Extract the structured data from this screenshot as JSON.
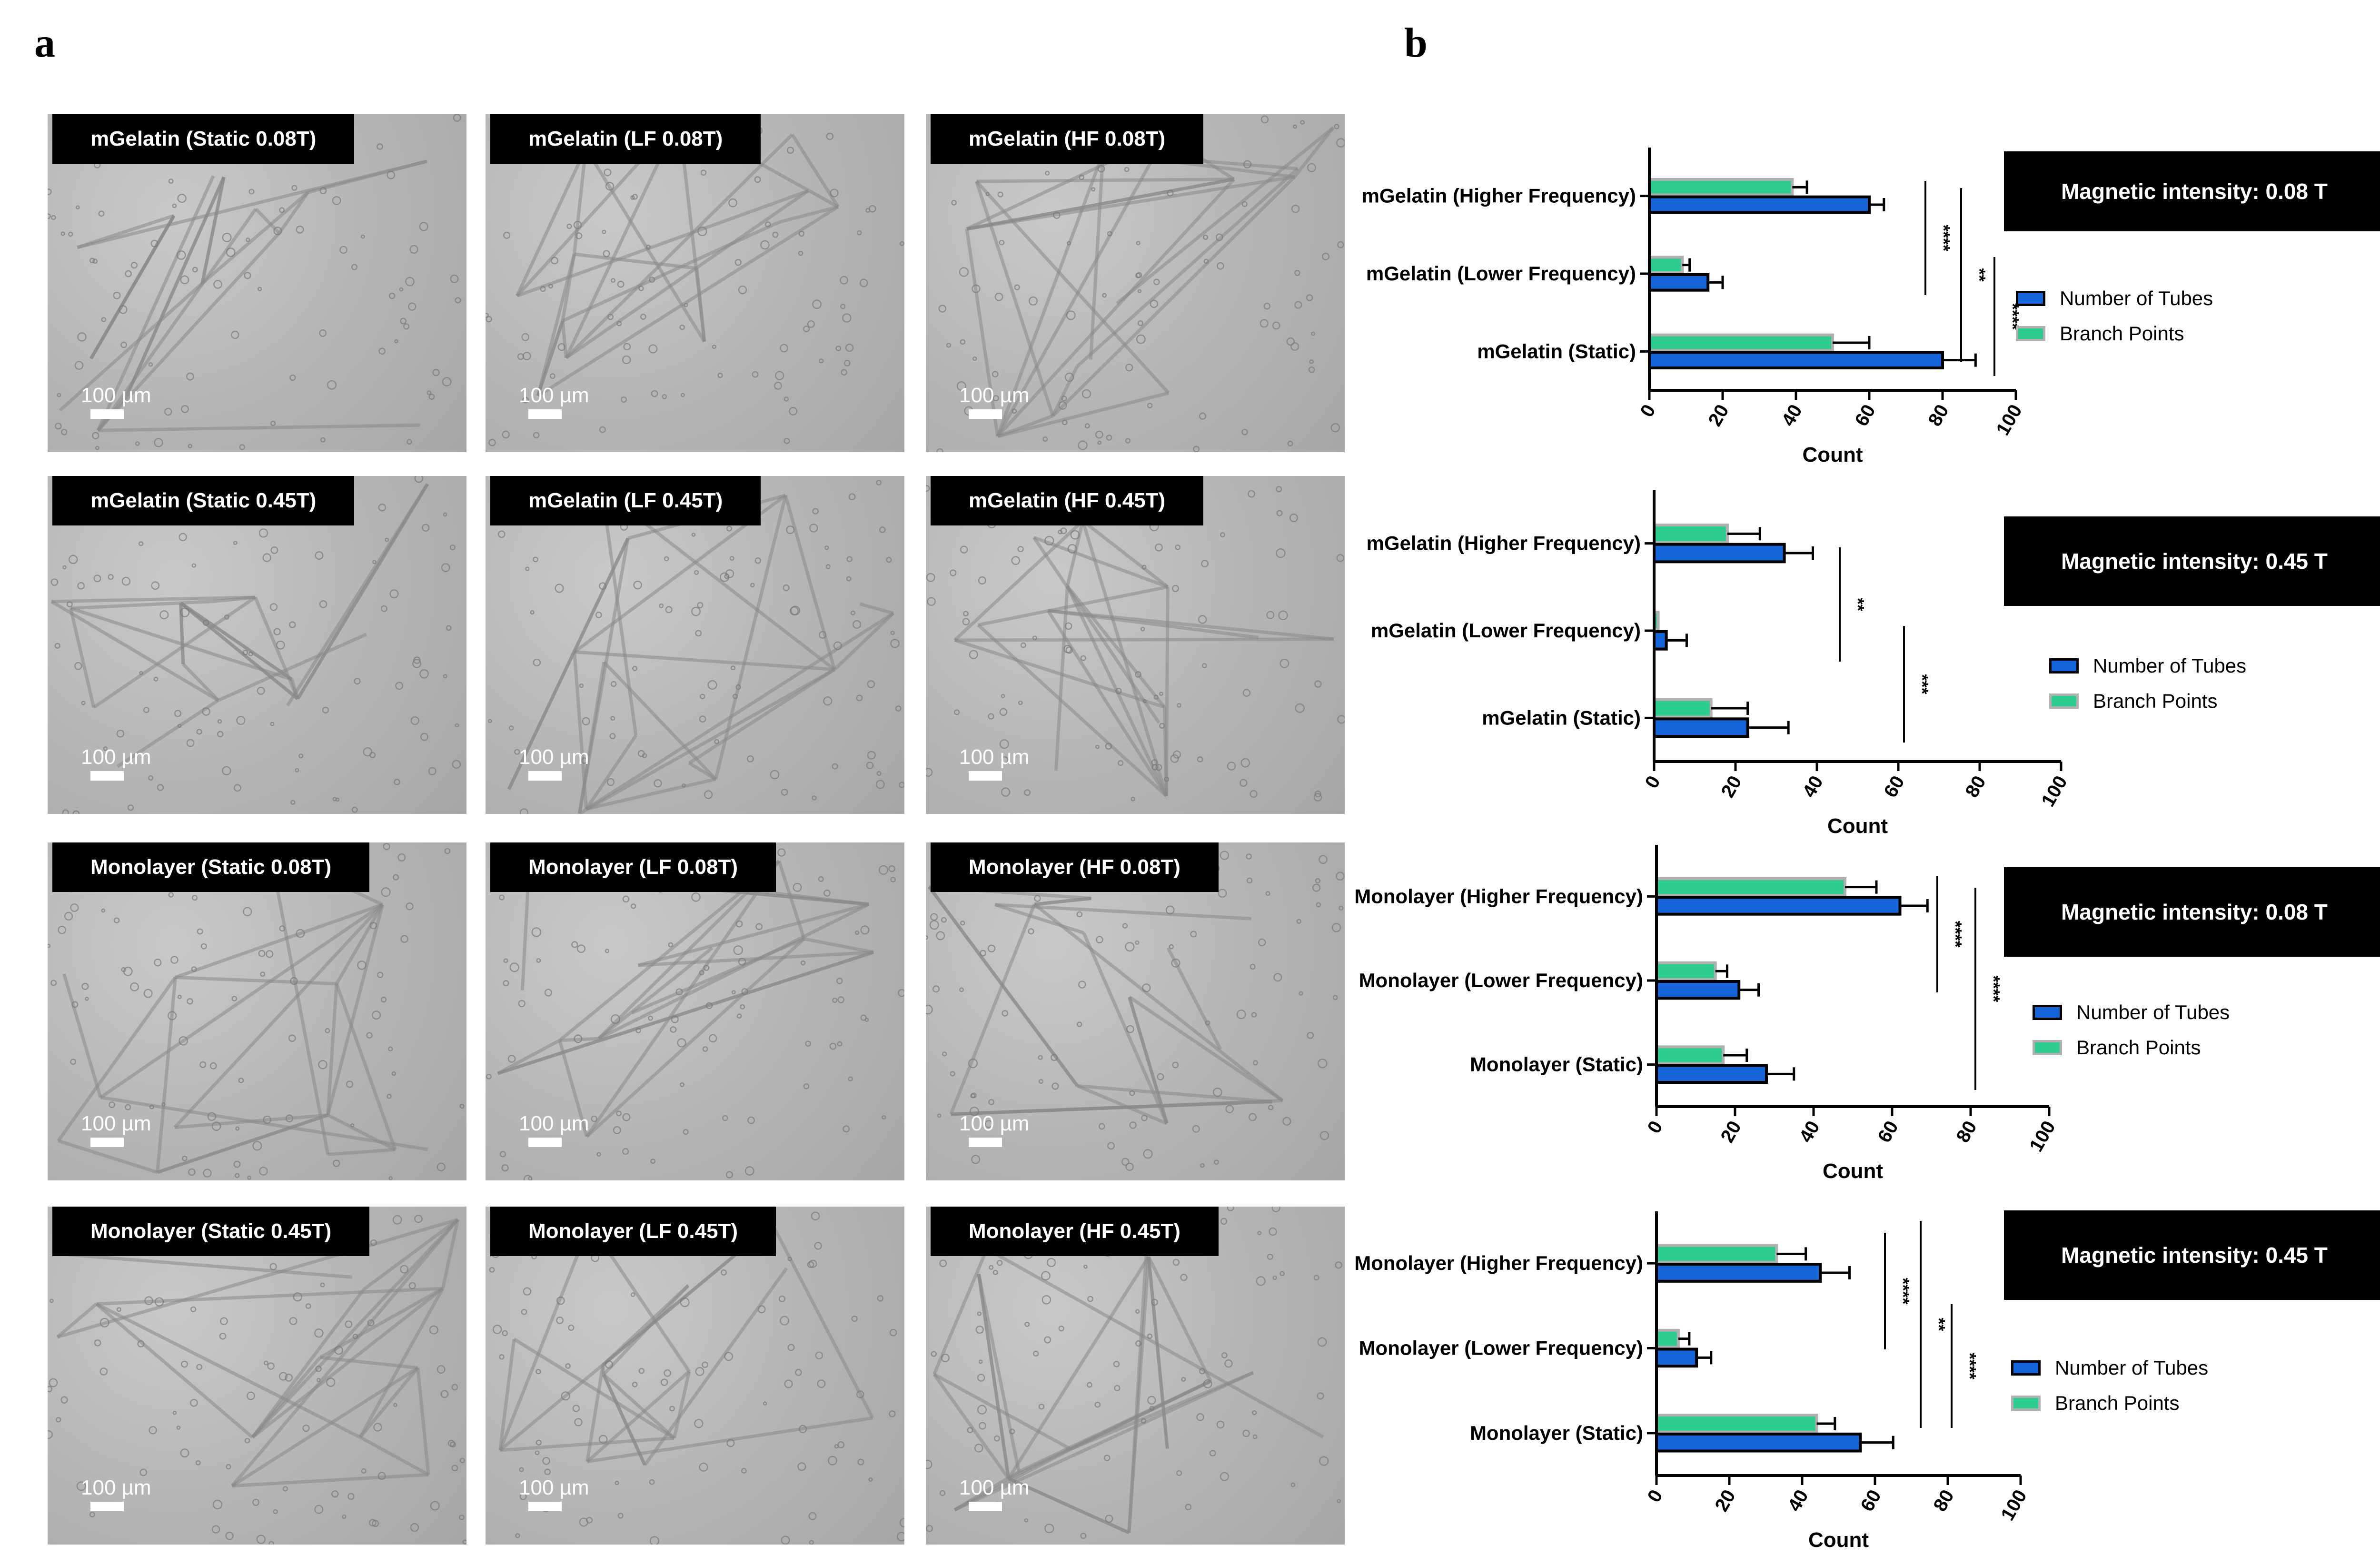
{
  "panel_labels": {
    "a": "a",
    "b": "b"
  },
  "colors": {
    "tubes": "#1565d8",
    "branch": "#2ecc8e",
    "branch_border": "#b0b0b0",
    "bar_border": "#000000"
  },
  "micrographs": [
    {
      "label": "mGelatin (Static 0.08T)",
      "scale": "100 µm"
    },
    {
      "label": "mGelatin (LF 0.08T)",
      "scale": "100 µm"
    },
    {
      "label": "mGelatin (HF 0.08T)",
      "scale": "100 µm"
    },
    {
      "label": "mGelatin (Static 0.45T)",
      "scale": "100 µm"
    },
    {
      "label": "mGelatin (LF 0.45T)",
      "scale": "100 µm"
    },
    {
      "label": "mGelatin (HF 0.45T)",
      "scale": "100 µm"
    },
    {
      "label": "Monolayer (Static 0.08T)",
      "scale": "100 µm"
    },
    {
      "label": "Monolayer (LF 0.08T)",
      "scale": "100 µm"
    },
    {
      "label": "Monolayer (HF 0.08T)",
      "scale": "100 µm"
    },
    {
      "label": "Monolayer (Static 0.45T)",
      "scale": "100 µm"
    },
    {
      "label": "Monolayer (LF 0.45T)",
      "scale": "100 µm"
    },
    {
      "label": "Monolayer (HF 0.45T)",
      "scale": "100 µm"
    }
  ],
  "chart_data": [
    {
      "type": "bar",
      "orientation": "horizontal",
      "magnetic_intensity": "Magnetic intensity: 0.08 T",
      "categories": [
        "mGelatin (Higher Frequency)",
        "mGelatin (Lower Frequency)",
        "mGelatin (Static)"
      ],
      "series": [
        {
          "name": "Branch Points",
          "values": [
            39,
            9,
            50
          ],
          "errors": [
            4,
            2,
            10
          ]
        },
        {
          "name": "Number of Tubes",
          "values": [
            60,
            16,
            80
          ],
          "errors": [
            4,
            4,
            9
          ]
        }
      ],
      "xlabel": "Count",
      "xlim": [
        0,
        100
      ],
      "xticks": [
        "0",
        "20",
        "40",
        "60",
        "80",
        "100"
      ],
      "significance": [
        "****",
        "**",
        "****"
      ]
    },
    {
      "type": "bar",
      "orientation": "horizontal",
      "magnetic_intensity": "Magnetic intensity: 0.45 T",
      "categories": [
        "mGelatin (Higher Frequency)",
        "mGelatin (Lower Frequency)",
        "mGelatin (Static)"
      ],
      "series": [
        {
          "name": "Branch Points",
          "values": [
            18,
            1,
            14
          ],
          "errors": [
            8,
            0,
            9
          ]
        },
        {
          "name": "Number of Tubes",
          "values": [
            32,
            3,
            23
          ],
          "errors": [
            7,
            5,
            10
          ]
        }
      ],
      "xlabel": "Count",
      "xlim": [
        0,
        100
      ],
      "xticks": [
        "0",
        "20",
        "40",
        "60",
        "80",
        "100"
      ],
      "significance": [
        "**",
        "***"
      ]
    },
    {
      "type": "bar",
      "orientation": "horizontal",
      "magnetic_intensity": "Magnetic intensity: 0.08 T",
      "categories": [
        "Monolayer (Higher Frequency)",
        "Monolayer (Lower Frequency)",
        "Monolayer (Static)"
      ],
      "series": [
        {
          "name": "Branch Points",
          "values": [
            48,
            15,
            17
          ],
          "errors": [
            8,
            3,
            6
          ]
        },
        {
          "name": "Number of Tubes",
          "values": [
            62,
            21,
            28
          ],
          "errors": [
            7,
            5,
            7
          ]
        }
      ],
      "xlabel": "Count",
      "xlim": [
        0,
        100
      ],
      "xticks": [
        "0",
        "20",
        "40",
        "60",
        "80",
        "100"
      ],
      "significance": [
        "****",
        "****"
      ]
    },
    {
      "type": "bar",
      "orientation": "horizontal",
      "magnetic_intensity": "Magnetic intensity: 0.45 T",
      "categories": [
        "Monolayer (Higher Frequency)",
        "Monolayer (Lower Frequency)",
        "Monolayer (Static)"
      ],
      "series": [
        {
          "name": "Branch Points",
          "values": [
            33,
            6,
            44
          ],
          "errors": [
            8,
            3,
            5
          ]
        },
        {
          "name": "Number of Tubes",
          "values": [
            45,
            11,
            56
          ],
          "errors": [
            8,
            4,
            9
          ]
        }
      ],
      "xlabel": "Count",
      "xlim": [
        0,
        100
      ],
      "xticks": [
        "0",
        "20",
        "40",
        "60",
        "80",
        "100"
      ],
      "significance": [
        "****",
        "**",
        "****"
      ]
    }
  ]
}
